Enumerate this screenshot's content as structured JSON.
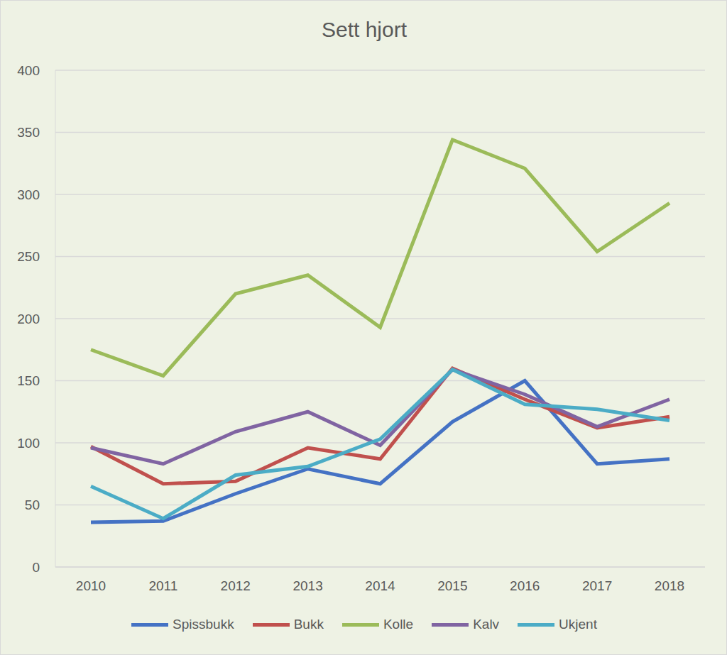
{
  "chart_data": {
    "type": "line",
    "title": "Sett hjort",
    "categories": [
      "2010",
      "2011",
      "2012",
      "2013",
      "2014",
      "2015",
      "2016",
      "2017",
      "2018"
    ],
    "series": [
      {
        "name": "Spissbukk",
        "color": "#4472C4",
        "values": [
          36,
          37,
          59,
          79,
          67,
          117,
          150,
          83,
          87
        ]
      },
      {
        "name": "Bukk",
        "color": "#C0504D",
        "values": [
          97,
          67,
          69,
          96,
          87,
          160,
          135,
          112,
          121
        ]
      },
      {
        "name": "Kolle",
        "color": "#9BBB59",
        "values": [
          175,
          154,
          220,
          235,
          193,
          344,
          321,
          254,
          293
        ]
      },
      {
        "name": "Kalv",
        "color": "#8064A2",
        "values": [
          96,
          83,
          109,
          125,
          98,
          159,
          139,
          113,
          135
        ]
      },
      {
        "name": "Ukjent",
        "color": "#4BACC6",
        "values": [
          65,
          39,
          74,
          81,
          103,
          159,
          131,
          127,
          118
        ]
      }
    ],
    "ylim": [
      0,
      400
    ],
    "yticks": [
      0,
      50,
      100,
      150,
      200,
      250,
      300,
      350,
      400
    ],
    "grid": true,
    "legend": "bottom"
  }
}
